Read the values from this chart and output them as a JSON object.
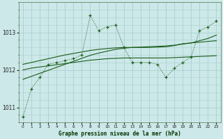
{
  "title": "Graphe pression niveau de la mer (hPa)",
  "bg_color": "#cce8e8",
  "grid_color": "#aad0d0",
  "line_color": "#1a5c1a",
  "x_ticks": [
    0,
    1,
    2,
    3,
    4,
    5,
    6,
    7,
    8,
    9,
    10,
    11,
    12,
    13,
    14,
    15,
    16,
    17,
    18,
    19,
    20,
    21,
    22,
    23
  ],
  "ylim": [
    1010.6,
    1013.8
  ],
  "yticks": [
    1011,
    1012,
    1013
  ],
  "series_main": [
    1010.75,
    1011.5,
    1011.8,
    1012.15,
    1012.2,
    1012.25,
    1012.3,
    1012.4,
    1013.45,
    1013.05,
    1013.15,
    1013.2,
    1012.6,
    1012.2,
    1012.2,
    1012.2,
    1012.15,
    1011.8,
    1012.05,
    1012.2,
    1012.35,
    1013.05,
    1013.15,
    1013.3
  ],
  "series_diag": [
    1011.75,
    1011.83,
    1011.91,
    1011.99,
    1012.07,
    1012.15,
    1012.23,
    1012.31,
    1012.39,
    1012.45,
    1012.5,
    1012.55,
    1012.58,
    1012.6,
    1012.61,
    1012.62,
    1012.63,
    1012.64,
    1012.66,
    1012.69,
    1012.72,
    1012.78,
    1012.84,
    1012.93
  ],
  "series_upper": [
    1012.15,
    1012.2,
    1012.25,
    1012.3,
    1012.35,
    1012.4,
    1012.44,
    1012.48,
    1012.52,
    1012.55,
    1012.57,
    1012.59,
    1012.6,
    1012.6,
    1012.6,
    1012.6,
    1012.61,
    1012.62,
    1012.65,
    1012.7,
    1012.72,
    1012.74,
    1012.76,
    1012.78
  ],
  "series_lower": [
    1012.0,
    1012.05,
    1012.08,
    1012.11,
    1012.14,
    1012.17,
    1012.2,
    1012.23,
    1012.26,
    1012.28,
    1012.3,
    1012.31,
    1012.32,
    1012.32,
    1012.32,
    1012.32,
    1012.32,
    1012.32,
    1012.33,
    1012.34,
    1012.35,
    1012.36,
    1012.37,
    1012.38
  ]
}
